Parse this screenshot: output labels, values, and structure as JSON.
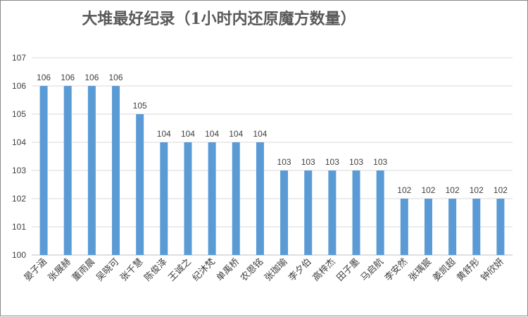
{
  "chart_data": {
    "type": "bar",
    "title": "大堆最好纪录（1小时内还原魔方数量）",
    "xlabel": "",
    "ylabel": "",
    "ylim": [
      100,
      107
    ],
    "yticks": [
      100,
      101,
      102,
      103,
      104,
      105,
      106,
      107
    ],
    "grid": true,
    "bar_color": "#5B9BD5",
    "categories": [
      "晏子涵",
      "张展赫",
      "董雨晨",
      "吴晓可",
      "张千慧",
      "陈俊泽",
      "王诚之",
      "纪沐梵",
      "单禹桥",
      "农恩铭",
      "张珈瑜",
      "李夕伯",
      "高梓杰",
      "田子墨",
      "马启航",
      "李安然",
      "张瑀宸",
      "姜凯超",
      "黄舒彤",
      "钟欣妍"
    ],
    "values": [
      106,
      106,
      106,
      106,
      105,
      104,
      104,
      104,
      104,
      104,
      103,
      103,
      103,
      103,
      103,
      102,
      102,
      102,
      102,
      102
    ]
  }
}
